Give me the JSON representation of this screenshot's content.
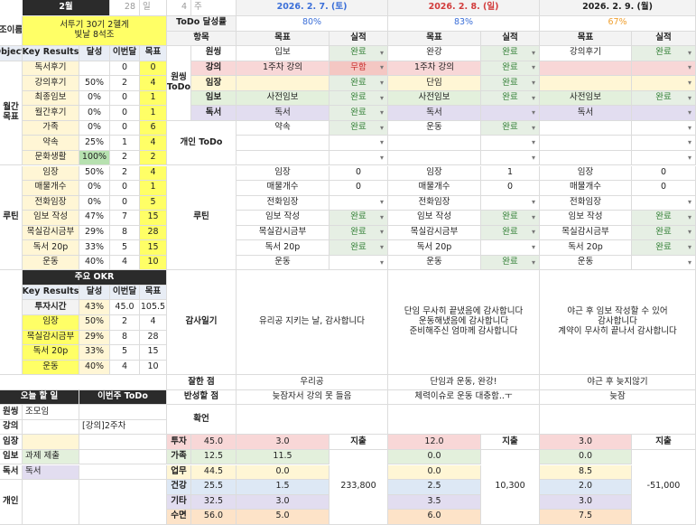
{
  "header": {
    "month": "2월",
    "days": "28",
    "days_unit": "일",
    "weeks": "4",
    "weeks_unit": "주",
    "dates": [
      "2026. 2. 7. (토)",
      "2026. 2. 8. (일)",
      "2026. 2. 9. (월)"
    ]
  },
  "group": {
    "label": "조이름",
    "name": [
      "서투기 30기 2헬게",
      "빛날 8석조"
    ]
  },
  "todo_rate": {
    "label": "ToDo 달성률",
    "values": [
      "80%",
      "83%",
      "67%"
    ]
  },
  "columns": {
    "item": "항목",
    "goal": "목표",
    "result": "실적"
  },
  "monthly": {
    "label": [
      "월간",
      "목표"
    ],
    "header": [
      "Objecti",
      "Key Results",
      "달성",
      "이번달",
      "목표"
    ],
    "rows": [
      [
        "독서후기",
        null,
        "0",
        "0"
      ],
      [
        "강의후기",
        "50%",
        "2",
        "4"
      ],
      [
        "최종임보",
        "0%",
        "0",
        "1"
      ],
      [
        "월간후기",
        "0%",
        "0",
        "1"
      ],
      [
        "가족",
        "0%",
        "0",
        "6"
      ],
      [
        "약속",
        "25%",
        "1",
        "4"
      ],
      [
        "문화생활",
        "100%",
        "2",
        "2"
      ]
    ]
  },
  "onething": {
    "label": [
      "원씽",
      "ToDo"
    ],
    "rows": [
      {
        "item": "원씽",
        "days": [
          [
            "입보",
            "완료"
          ],
          [
            "완강",
            "완료"
          ],
          [
            "강의후기",
            "완료"
          ]
        ]
      },
      {
        "item": "강의",
        "days": [
          [
            "1주차 강의",
            "무함"
          ],
          [
            "1주차 강의",
            "완료"
          ],
          [
            null,
            null
          ]
        ]
      },
      {
        "item": "임장",
        "days": [
          [
            null,
            "완료"
          ],
          [
            "단임",
            "완료"
          ],
          [
            null,
            null
          ]
        ]
      },
      {
        "item": "임보",
        "days": [
          [
            "사전임보",
            "완료"
          ],
          [
            "사전임보",
            "완료"
          ],
          [
            "사전임보",
            "완료"
          ]
        ]
      },
      {
        "item": "독서",
        "days": [
          [
            "독서",
            "완료"
          ],
          [
            "독서",
            null
          ],
          [
            "독서",
            null
          ]
        ]
      }
    ]
  },
  "personal": {
    "label": "개인 ToDo",
    "rows": [
      [
        [
          "약속",
          "완료"
        ],
        [
          "운동",
          "완료"
        ],
        [
          null,
          null
        ]
      ],
      [
        [
          null,
          null
        ],
        [
          null,
          null
        ],
        [
          null,
          null
        ]
      ],
      [
        [
          null,
          null
        ],
        [
          null,
          null
        ],
        [
          null,
          null
        ]
      ]
    ]
  },
  "routine": {
    "label": "루틴",
    "rows": [
      [
        "임장",
        "50%",
        "2",
        "4"
      ],
      [
        "매물개수",
        "0%",
        "0",
        "1"
      ],
      [
        "전화임장",
        "0%",
        "0",
        "5"
      ],
      [
        "임보 작성",
        "47%",
        "7",
        "15"
      ],
      [
        "목실감시금부",
        "29%",
        "8",
        "28"
      ],
      [
        "독서 20p",
        "33%",
        "5",
        "15"
      ],
      [
        "운동",
        "40%",
        "4",
        "10"
      ]
    ],
    "days": [
      [
        [
          "임장",
          "0"
        ],
        [
          "임장",
          "1"
        ],
        [
          "임장",
          "0"
        ]
      ],
      [
        [
          "매물개수",
          "0"
        ],
        [
          "매물개수",
          "0"
        ],
        [
          "매물개수",
          "0"
        ]
      ],
      [
        [
          "전화임장",
          null
        ],
        [
          "전화임장",
          null
        ],
        [
          "전화임장",
          null
        ]
      ],
      [
        [
          "임보 작성",
          "완료"
        ],
        [
          "임보 작성",
          "완료"
        ],
        [
          "임보 작성",
          "완료"
        ]
      ],
      [
        [
          "목실감시금부",
          "완료"
        ],
        [
          "목실감시금부",
          "완료"
        ],
        [
          "목실감시금부",
          "완료"
        ]
      ],
      [
        [
          "독서 20p",
          "완료"
        ],
        [
          "독서 20p",
          null
        ],
        [
          "독서 20p",
          "완료"
        ]
      ],
      [
        [
          "운동",
          null
        ],
        [
          "운동",
          "완료"
        ],
        [
          "운동",
          null
        ]
      ]
    ]
  },
  "okr": {
    "title": "주요 OKR",
    "header": [
      "Key Results",
      "달성",
      "이번달",
      "목표"
    ],
    "rows": [
      [
        "투자시간",
        "43%",
        "45.0",
        "105.5"
      ],
      [
        "임장",
        "50%",
        "2",
        "4"
      ],
      [
        "목실감시금부",
        "29%",
        "8",
        "28"
      ],
      [
        "독서 20p",
        "33%",
        "5",
        "15"
      ],
      [
        "운동",
        "40%",
        "4",
        "10"
      ]
    ]
  },
  "gratitude": {
    "label": "감사일기",
    "days": [
      [
        "유리공 지키는 날, 감사합니다"
      ],
      [
        "단임 무사히 끝냈음에 감사합니다",
        "운동해냈음에 감사합니다",
        "준비해주신 엄마께 감사합니다"
      ],
      [
        "야근 후 임보 작성할 수 있어",
        "감사합니다",
        "계약이 무사히 끝나서 감사합니다"
      ]
    ]
  },
  "good": {
    "label": "잘한 점",
    "days": [
      "우리공",
      "단임과 운동, 완강!",
      "야근 후 늦지않기"
    ]
  },
  "reflect": {
    "label": "반성할 점",
    "days": [
      "늦잠자서 강의 못 들음",
      "체력이슈로 운동 대충함..ㅜ",
      "늦잠"
    ]
  },
  "affirm": {
    "label": "확언"
  },
  "today": {
    "title": "오늘 할 일",
    "week_title": "이번주 ToDo",
    "rows": [
      {
        "label": "원씽",
        "today": "조모임"
      },
      {
        "label": "강의",
        "week": "[강의]2주차"
      },
      {
        "label": "임장"
      },
      {
        "label": "임보",
        "today": "과제 제출"
      },
      {
        "label": "독서",
        "today": "독서"
      },
      {
        "label": "개인"
      }
    ]
  },
  "time": {
    "spend_label": "지출",
    "spend": [
      "233,800",
      "10,300",
      "-51,000"
    ],
    "rows": [
      {
        "label": "투자",
        "total": "45.0",
        "days": [
          "3.0",
          "12.0",
          "3.0"
        ]
      },
      {
        "label": "가족",
        "total": "12.5",
        "days": [
          "11.5",
          "0.0",
          "0.0"
        ]
      },
      {
        "label": "업무",
        "total": "44.5",
        "days": [
          "0.0",
          "0.0",
          "8.5"
        ]
      },
      {
        "label": "건강",
        "total": "25.5",
        "days": [
          "1.5",
          "2.5",
          "2.0"
        ]
      },
      {
        "label": "기타",
        "total": "32.5",
        "days": [
          "3.0",
          "3.5",
          "3.0"
        ]
      },
      {
        "label": "수면",
        "total": "56.0",
        "days": [
          "5.0",
          "6.0",
          "7.5"
        ]
      }
    ]
  }
}
